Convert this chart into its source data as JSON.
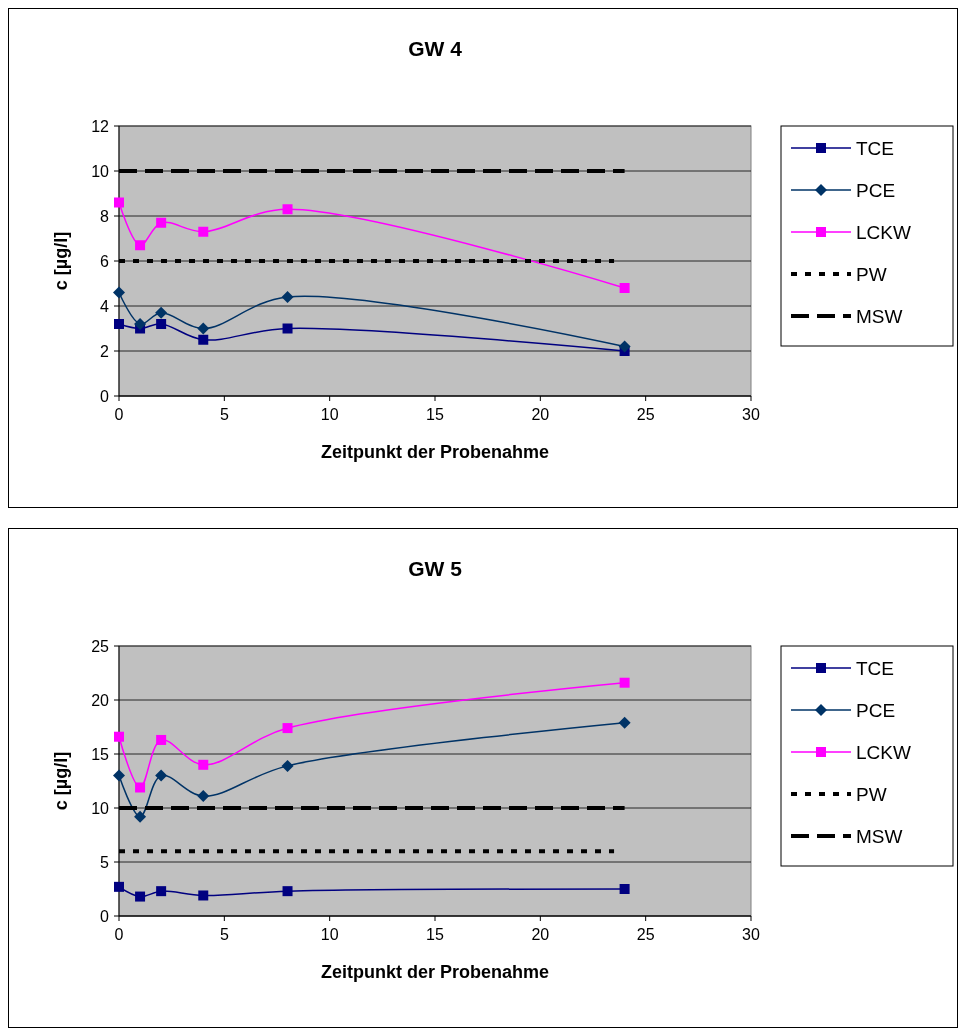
{
  "chart_data": [
    {
      "type": "line",
      "title": "GW 4",
      "xlabel": "Zeitpunkt der Probenahme",
      "ylabel": "c [µg/l]",
      "xlim": [
        0,
        30
      ],
      "xticks": [
        0,
        5,
        10,
        15,
        20,
        25,
        30
      ],
      "ylim": [
        0,
        12
      ],
      "yticks": [
        0,
        2,
        4,
        6,
        8,
        10,
        12
      ],
      "grid": "y",
      "legend": "right",
      "series": [
        {
          "name": "TCE",
          "color": "#000080",
          "marker": "square",
          "line_style": "solid",
          "x": [
            0,
            1,
            2,
            4,
            8,
            24
          ],
          "values": [
            3.2,
            3.0,
            3.2,
            2.5,
            3.0,
            2.0
          ]
        },
        {
          "name": "PCE",
          "color": "#003366",
          "marker": "diamond",
          "line_style": "solid",
          "x": [
            0,
            1,
            2,
            4,
            8,
            24
          ],
          "values": [
            4.6,
            3.2,
            3.7,
            3.0,
            4.4,
            2.2
          ]
        },
        {
          "name": "LCKW",
          "color": "#ff00ff",
          "marker": "square",
          "line_style": "solid",
          "x": [
            0,
            1,
            2,
            4,
            8,
            24
          ],
          "values": [
            8.6,
            6.7,
            7.7,
            7.3,
            8.3,
            4.8
          ]
        },
        {
          "name": "PW",
          "color": "#000000",
          "marker": "none",
          "line_style": "dotted",
          "x": [
            0,
            23.5
          ],
          "values": [
            6,
            6
          ]
        },
        {
          "name": "MSW",
          "color": "#000000",
          "marker": "none",
          "line_style": "dashed",
          "x": [
            0,
            24
          ],
          "values": [
            10,
            10
          ]
        }
      ]
    },
    {
      "type": "line",
      "title": "GW 5",
      "xlabel": "Zeitpunkt der Probenahme",
      "ylabel": "c [µg/l]",
      "xlim": [
        0,
        30
      ],
      "xticks": [
        0,
        5,
        10,
        15,
        20,
        25,
        30
      ],
      "ylim": [
        0,
        25
      ],
      "yticks": [
        0,
        5,
        10,
        15,
        20,
        25
      ],
      "grid": "y",
      "legend": "right",
      "series": [
        {
          "name": "TCE",
          "color": "#000080",
          "marker": "square",
          "line_style": "solid",
          "x": [
            0,
            1,
            2,
            4,
            8,
            24
          ],
          "values": [
            2.7,
            1.8,
            2.3,
            1.9,
            2.3,
            2.5
          ]
        },
        {
          "name": "PCE",
          "color": "#003366",
          "marker": "diamond",
          "line_style": "solid",
          "x": [
            0,
            1,
            2,
            4,
            8,
            24
          ],
          "values": [
            13,
            9.2,
            13,
            11.1,
            13.9,
            17.9
          ]
        },
        {
          "name": "LCKW",
          "color": "#ff00ff",
          "marker": "square",
          "line_style": "solid",
          "x": [
            0,
            1,
            2,
            4,
            8,
            24
          ],
          "values": [
            16.6,
            11.9,
            16.3,
            14,
            17.4,
            21.6
          ]
        },
        {
          "name": "PW",
          "color": "#000000",
          "marker": "none",
          "line_style": "dotted",
          "x": [
            0,
            23.5
          ],
          "values": [
            6,
            6
          ]
        },
        {
          "name": "MSW",
          "color": "#000000",
          "marker": "none",
          "line_style": "dashed",
          "x": [
            0,
            24
          ],
          "values": [
            10,
            10
          ]
        }
      ]
    }
  ]
}
